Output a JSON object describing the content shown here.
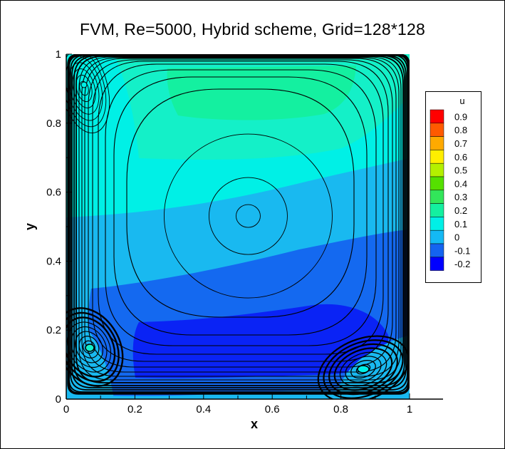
{
  "chart_data": {
    "type": "contour",
    "title": "FVM, Re=5000, Hybrid scheme, Grid=128*128",
    "xlabel": "x",
    "ylabel": "y",
    "xlim": [
      0,
      1.1
    ],
    "ylim": [
      0,
      1
    ],
    "xticks": [
      "0",
      "0.2",
      "0.4",
      "0.6",
      "0.8",
      "1"
    ],
    "yticks": [
      "0",
      "0.2",
      "0.4",
      "0.6",
      "0.8",
      "1"
    ],
    "legend": {
      "title": "u",
      "placement": "right",
      "levels": [
        {
          "label": "0.9",
          "color": "#ff0000"
        },
        {
          "label": "0.8",
          "color": "#ff5a00"
        },
        {
          "label": "0.7",
          "color": "#ffaa00"
        },
        {
          "label": "0.6",
          "color": "#ffee00"
        },
        {
          "label": "0.5",
          "color": "#b4f000"
        },
        {
          "label": "0.4",
          "color": "#55e000"
        },
        {
          "label": "0.3",
          "color": "#32e65a"
        },
        {
          "label": "0.2",
          "color": "#14f0a0"
        },
        {
          "label": "0.1",
          "color": "#00f0e6"
        },
        {
          "label": "0",
          "color": "#14b9f5"
        },
        {
          "label": "-0.1",
          "color": "#1464f0"
        },
        {
          "label": "-0.2",
          "color": "#0000ff"
        }
      ]
    },
    "colors": {
      "band_0_3": "#14f0a0",
      "band_0_2": "#14f0c8",
      "band_0_1": "#00f0e6",
      "band_0": "#19b9f0",
      "band_neg0_1": "#1469f0",
      "band_neg0_2": "#0a23f5",
      "streamline": "#000000"
    },
    "primary_vortex_center": {
      "x": 0.53,
      "y": 0.535
    }
  }
}
